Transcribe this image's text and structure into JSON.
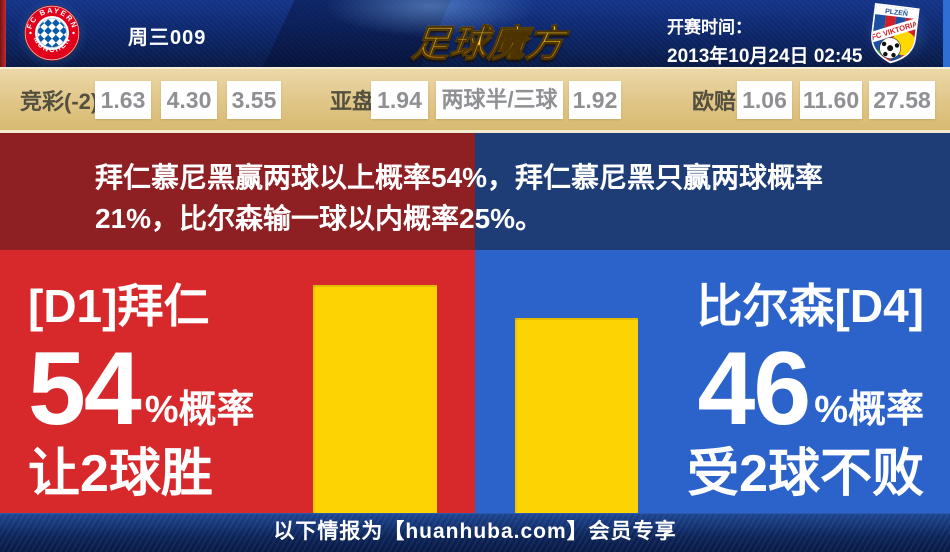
{
  "colors": {
    "header-navy": "#14358a",
    "header-navy-dark": "#081a45",
    "edge-red": "#bf2d30",
    "edge-blue": "#2d6fd4",
    "odds-tan": "#e0c587",
    "odds-label": "#53503f",
    "odds-value": "#8f9094",
    "band-red": "#8e1f23",
    "band-blue": "#1e3d76",
    "panel-red": "#d7282b",
    "panel-blue": "#2c63cb",
    "bar-gold": "#fdd303",
    "footer-navy": "#0c2458"
  },
  "header": {
    "match_code": "周三009",
    "brand": "足球魔方",
    "kickoff_label": "开赛时间：",
    "kickoff_datetime": "2013年10月24日 02:45",
    "home_badge": {
      "club": "拜仁慕尼黑",
      "ring_top": "FC BAYERN",
      "ring_bottom": "MÜNCHEN"
    },
    "away_badge": {
      "club": "比尔森",
      "top_text": "PLZEŇ",
      "band_text": "FC VIKTORIA"
    }
  },
  "odds": {
    "jingcai": {
      "label": "竞彩(-2)",
      "values": [
        "1.63",
        "4.30",
        "3.55"
      ]
    },
    "yapan": {
      "label": "亚盘",
      "home": "1.94",
      "handicap": "两球半/三球",
      "away": "1.92"
    },
    "oupei": {
      "label": "欧赔",
      "values": [
        "1.06",
        "11.60",
        "27.58"
      ]
    }
  },
  "summary": {
    "text": "拜仁慕尼黑赢两球以上概率54%，拜仁慕尼黑只赢两球概率21%，比尔森输一球以内概率25%。"
  },
  "chart_data": {
    "type": "bar",
    "categories": [
      "[D1]拜仁 让2球胜",
      "比尔森[D4] 受2球不败"
    ],
    "values": [
      54,
      46
    ],
    "unit": "%",
    "bar_color": "#fdd303",
    "ylim": [
      0,
      62
    ],
    "legend": false,
    "annotations": [
      "54%概率 让2球胜",
      "46%概率 受2球不败"
    ]
  },
  "panels": {
    "home": {
      "team": "[D1]拜仁",
      "percent": "54",
      "suffix": "%概率",
      "outcome": "让2球胜"
    },
    "away": {
      "team": "比尔森[D4]",
      "percent": "46",
      "suffix": "%概率",
      "outcome": "受2球不败"
    }
  },
  "footer": {
    "text": "以下情报为【huanhuba.com】会员专享"
  }
}
